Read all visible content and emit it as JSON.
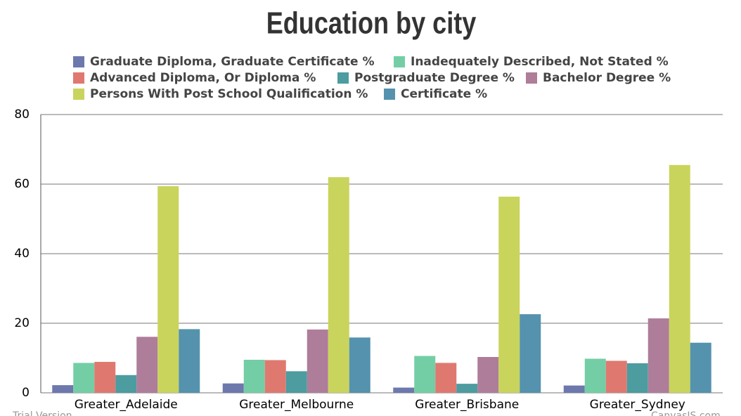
{
  "chart_data": {
    "type": "bar",
    "title": "Education by city",
    "categories": [
      "Greater_Adelaide",
      "Greater_Melbourne",
      "Greater_Brisbane",
      "Greater_Sydney"
    ],
    "series": [
      {
        "name": "Graduate Diploma, Graduate Certificate %",
        "color": "#6d78ad",
        "values": [
          2.2,
          2.7,
          1.5,
          2.1
        ]
      },
      {
        "name": "Inadequately Described, Not Stated %",
        "color": "#74cea5",
        "values": [
          8.6,
          9.5,
          10.6,
          9.8
        ]
      },
      {
        "name": "Advanced Diploma, Or Diploma  %",
        "color": "#df7970",
        "values": [
          8.9,
          9.4,
          8.6,
          9.2
        ]
      },
      {
        "name": "Postgraduate Degree %",
        "color": "#4c9ca0",
        "values": [
          5.1,
          6.2,
          2.6,
          8.5
        ]
      },
      {
        "name": "Bachelor Degree %",
        "color": "#ae7d99",
        "values": [
          16.1,
          18.2,
          10.3,
          21.4
        ]
      },
      {
        "name": "Persons With Post School Qualification %",
        "color": "#c9d45c",
        "values": [
          59.4,
          62.0,
          56.4,
          65.5
        ]
      },
      {
        "name": "Certificate %",
        "color": "#5592ad",
        "values": [
          18.3,
          15.9,
          22.6,
          14.4
        ]
      }
    ],
    "ylim": [
      0,
      80
    ],
    "yticks": [
      0,
      20,
      40,
      60,
      80
    ],
    "grid": true,
    "watermark_left": "Trial Version",
    "watermark_right": "CanvasJS.com"
  }
}
